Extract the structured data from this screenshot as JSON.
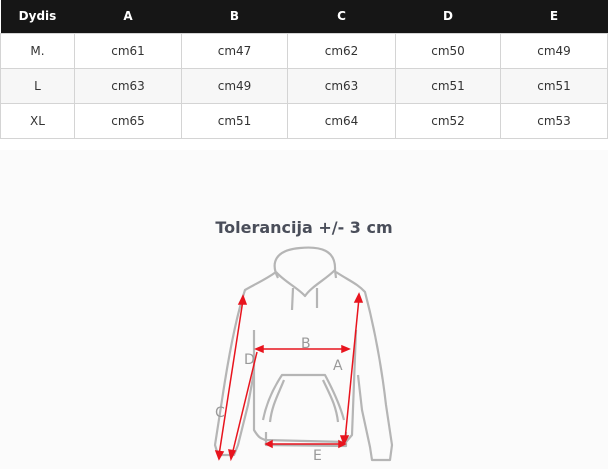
{
  "table": {
    "headers": [
      "Dydis",
      "A",
      "B",
      "C",
      "D",
      "E"
    ],
    "rows": [
      [
        "M.",
        "cm61",
        "cm47",
        "cm62",
        "cm50",
        "cm49"
      ],
      [
        "L",
        "cm63",
        "cm49",
        "cm63",
        "cm51",
        "cm51"
      ],
      [
        "XL",
        "cm65",
        "cm51",
        "cm64",
        "cm52",
        "cm53"
      ]
    ]
  },
  "tolerance": "Tolerancija +/- 3 cm",
  "diagram": {
    "labels": {
      "A": "A",
      "B": "B",
      "C": "C",
      "D": "D",
      "E": "E"
    },
    "arrow_color": "#e8141e",
    "outline_color": "#b5b5b5"
  }
}
